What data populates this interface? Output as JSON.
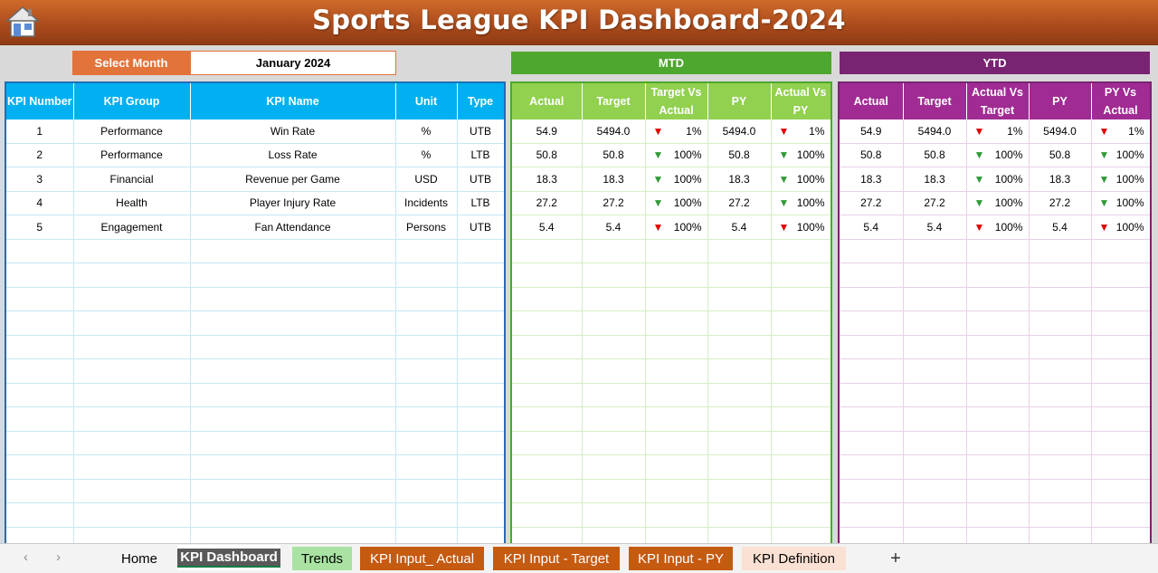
{
  "title": "Sports League KPI Dashboard-2024",
  "select_month": {
    "label": "Select Month",
    "value": "January 2024"
  },
  "mtd_label": "MTD",
  "ytd_label": "YTD",
  "kpi_headers": [
    "KPI Number",
    "KPI Group",
    "KPI Name",
    "Unit",
    "Type"
  ],
  "mtd_headers": [
    "Actual",
    "Target",
    "Target Vs Actual",
    "PY",
    "Actual Vs PY"
  ],
  "ytd_headers": [
    "Actual",
    "Target",
    "Actual Vs Target",
    "PY",
    "PY Vs Actual"
  ],
  "rows": [
    {
      "num": "1",
      "group": "Performance",
      "name": "Win Rate",
      "unit": "%",
      "type": "UTB",
      "mtd": {
        "actual": "54.9",
        "target": "5494.0",
        "tva": "1%",
        "tva_dir": "down",
        "py": "5494.0",
        "avp": "1%",
        "avp_dir": "down"
      },
      "ytd": {
        "actual": "54.9",
        "target": "5494.0",
        "avt": "1%",
        "avt_dir": "down",
        "py": "5494.0",
        "pva": "1%",
        "pva_dir": "down"
      }
    },
    {
      "num": "2",
      "group": "Performance",
      "name": "Loss Rate",
      "unit": "%",
      "type": "LTB",
      "mtd": {
        "actual": "50.8",
        "target": "50.8",
        "tva": "100%",
        "tva_dir": "up",
        "py": "50.8",
        "avp": "100%",
        "avp_dir": "up"
      },
      "ytd": {
        "actual": "50.8",
        "target": "50.8",
        "avt": "100%",
        "avt_dir": "up",
        "py": "50.8",
        "pva": "100%",
        "pva_dir": "up"
      }
    },
    {
      "num": "3",
      "group": "Financial",
      "name": "Revenue per Game",
      "unit": "USD",
      "type": "UTB",
      "mtd": {
        "actual": "18.3",
        "target": "18.3",
        "tva": "100%",
        "tva_dir": "up",
        "py": "18.3",
        "avp": "100%",
        "avp_dir": "up"
      },
      "ytd": {
        "actual": "18.3",
        "target": "18.3",
        "avt": "100%",
        "avt_dir": "up",
        "py": "18.3",
        "pva": "100%",
        "pva_dir": "up"
      }
    },
    {
      "num": "4",
      "group": "Health",
      "name": "Player Injury Rate",
      "unit": "Incidents",
      "type": "LTB",
      "mtd": {
        "actual": "27.2",
        "target": "27.2",
        "tva": "100%",
        "tva_dir": "up",
        "py": "27.2",
        "avp": "100%",
        "avp_dir": "up"
      },
      "ytd": {
        "actual": "27.2",
        "target": "27.2",
        "avt": "100%",
        "avt_dir": "up",
        "py": "27.2",
        "pva": "100%",
        "pva_dir": "up"
      }
    },
    {
      "num": "5",
      "group": "Engagement",
      "name": "Fan Attendance",
      "unit": "Persons",
      "type": "UTB",
      "mtd": {
        "actual": "5.4",
        "target": "5.4",
        "tva": "100%",
        "tva_dir": "down",
        "py": "5.4",
        "avp": "100%",
        "avp_dir": "down"
      },
      "ytd": {
        "actual": "5.4",
        "target": "5.4",
        "avt": "100%",
        "avt_dir": "down",
        "py": "5.4",
        "pva": "100%",
        "pva_dir": "down"
      }
    }
  ],
  "tabs": {
    "home": "Home",
    "dashboard": "KPI Dashboard",
    "trends": "Trends",
    "input_actual": "KPI Input_ Actual",
    "input_target": "KPI Input - Target",
    "input_py": "KPI Input - PY",
    "definition": "KPI Definition",
    "add": "+"
  },
  "colors": {
    "title_bar": "#a94a1c",
    "select_label": "#e2733a",
    "kpi_header": "#00b0f0",
    "kpi_border": "#1f6fb5",
    "mtd_banner": "#4ea72e",
    "mtd_header": "#92d050",
    "ytd_banner": "#782473",
    "ytd_header": "#a02b93",
    "arrow_down": "#e00000",
    "arrow_up": "#2e9a36"
  },
  "icons": {
    "home": "home-icon",
    "down": "triangle-down-icon",
    "up": "triangle-down-icon"
  }
}
